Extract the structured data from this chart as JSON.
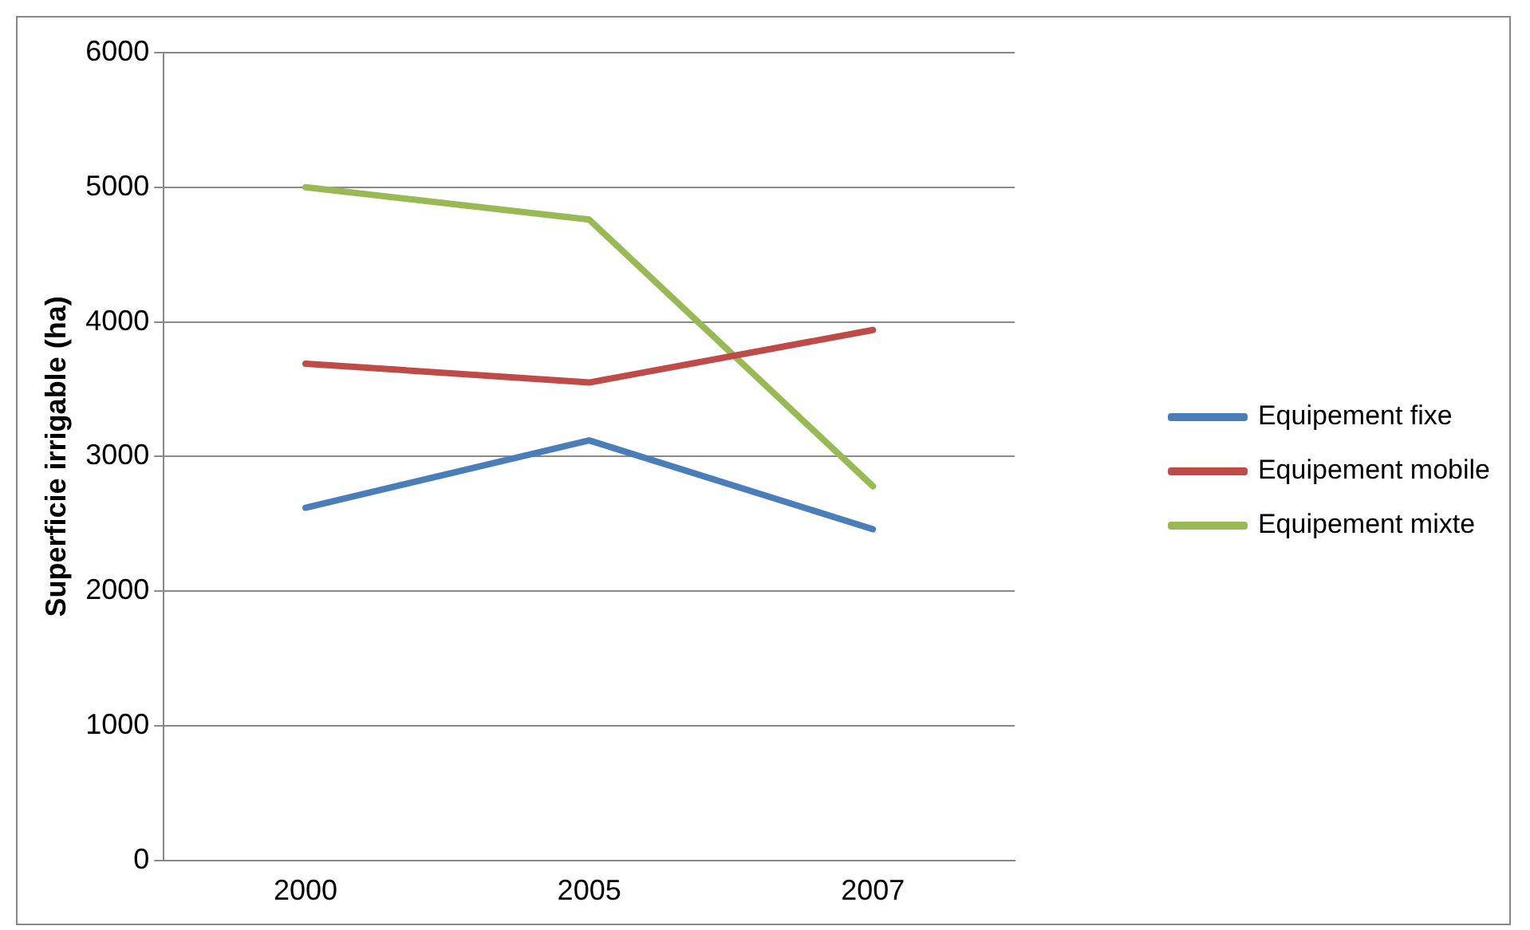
{
  "chart_data": {
    "type": "line",
    "ylabel": "Superficie irrigable (ha)",
    "categories": [
      "2000",
      "2005",
      "2007"
    ],
    "series": [
      {
        "name": "Equipement fixe",
        "color": "#4a7ebb",
        "values": [
          2620,
          3120,
          2460
        ]
      },
      {
        "name": "Equipement mobile",
        "color": "#be4b48",
        "values": [
          3690,
          3550,
          3940
        ]
      },
      {
        "name": "Equipement mixte",
        "color": "#98b954",
        "values": [
          5000,
          4760,
          2780
        ]
      }
    ],
    "ylim": [
      0,
      6000
    ],
    "yticks": [
      0,
      1000,
      2000,
      3000,
      4000,
      5000,
      6000
    ],
    "grid": "y",
    "legend": "right",
    "marker": "none",
    "line_style": "solid"
  }
}
